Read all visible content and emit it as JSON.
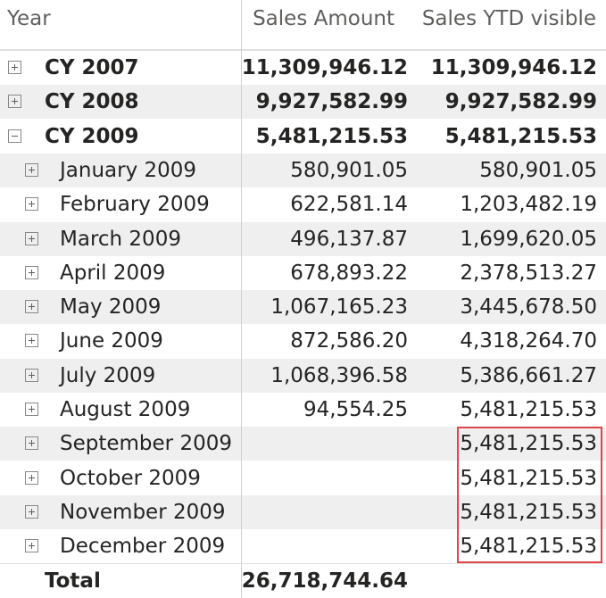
{
  "columns": {
    "year": "Year",
    "sales": "Sales Amount",
    "ytd": "Sales YTD visible"
  },
  "rows": [
    {
      "label": "CY 2007",
      "sales": "11,309,946.12",
      "ytd": "11,309,946.12",
      "level": 0,
      "expanded": false,
      "bold": true
    },
    {
      "label": "CY 2008",
      "sales": "9,927,582.99",
      "ytd": "9,927,582.99",
      "level": 0,
      "expanded": false,
      "bold": true
    },
    {
      "label": "CY 2009",
      "sales": "5,481,215.53",
      "ytd": "5,481,215.53",
      "level": 0,
      "expanded": true,
      "bold": true
    },
    {
      "label": "January 2009",
      "sales": "580,901.05",
      "ytd": "580,901.05",
      "level": 1,
      "expanded": false,
      "bold": false
    },
    {
      "label": "February 2009",
      "sales": "622,581.14",
      "ytd": "1,203,482.19",
      "level": 1,
      "expanded": false,
      "bold": false
    },
    {
      "label": "March 2009",
      "sales": "496,137.87",
      "ytd": "1,699,620.05",
      "level": 1,
      "expanded": false,
      "bold": false
    },
    {
      "label": "April 2009",
      "sales": "678,893.22",
      "ytd": "2,378,513.27",
      "level": 1,
      "expanded": false,
      "bold": false
    },
    {
      "label": "May 2009",
      "sales": "1,067,165.23",
      "ytd": "3,445,678.50",
      "level": 1,
      "expanded": false,
      "bold": false
    },
    {
      "label": "June 2009",
      "sales": "872,586.20",
      "ytd": "4,318,264.70",
      "level": 1,
      "expanded": false,
      "bold": false
    },
    {
      "label": "July 2009",
      "sales": "1,068,396.58",
      "ytd": "5,386,661.27",
      "level": 1,
      "expanded": false,
      "bold": false
    },
    {
      "label": "August 2009",
      "sales": "94,554.25",
      "ytd": "5,481,215.53",
      "level": 1,
      "expanded": false,
      "bold": false
    },
    {
      "label": "September 2009",
      "sales": "",
      "ytd": "5,481,215.53",
      "level": 1,
      "expanded": false,
      "bold": false
    },
    {
      "label": "October 2009",
      "sales": "",
      "ytd": "5,481,215.53",
      "level": 1,
      "expanded": false,
      "bold": false
    },
    {
      "label": "November 2009",
      "sales": "",
      "ytd": "5,481,215.53",
      "level": 1,
      "expanded": false,
      "bold": false
    },
    {
      "label": "December 2009",
      "sales": "",
      "ytd": "5,481,215.53",
      "level": 1,
      "expanded": false,
      "bold": false
    }
  ],
  "total": {
    "label": "Total",
    "sales": "26,718,744.64",
    "ytd": ""
  },
  "colors": {
    "highlight": "#e0454a",
    "shaded": "#efefef"
  }
}
